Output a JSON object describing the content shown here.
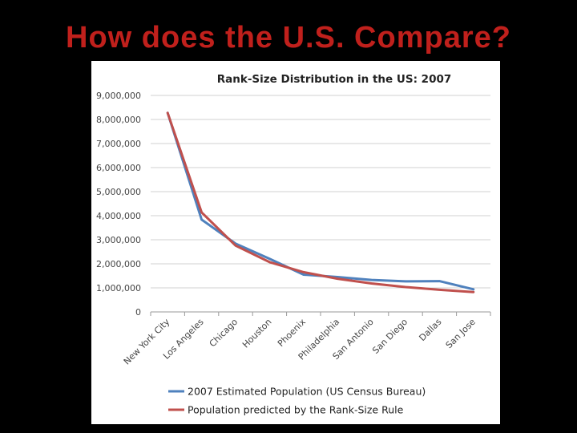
{
  "slide": {
    "title": "How does the U.S. Compare?"
  },
  "chart_data": {
    "type": "line",
    "title": "Rank-Size Distribution in the US: 2007",
    "categories": [
      "New York City",
      "Los Angeles",
      "Chicago",
      "Houston",
      "Phoenix",
      "Philadelphia",
      "San Antonio",
      "San Diego",
      "Dallas",
      "San Jose"
    ],
    "yticks": [
      "0",
      "1,000,000",
      "2,000,000",
      "3,000,000",
      "4,000,000",
      "5,000,000",
      "6,000,000",
      "7,000,000",
      "8,000,000",
      "9,000,000"
    ],
    "ylim": [
      0,
      9000000
    ],
    "grid": true,
    "legend_position": "bottom",
    "series": [
      {
        "name": "2007 Estimated Population (US Census Bureau)",
        "color": "#4f81bd",
        "values": [
          8275000,
          3835000,
          2835000,
          2210000,
          1550000,
          1450000,
          1330000,
          1270000,
          1280000,
          940000
        ]
      },
      {
        "name": "Population predicted by the Rank-Size Rule",
        "color": "#c0504d",
        "values": [
          8275000,
          4137500,
          2758333,
          2068750,
          1655000,
          1379167,
          1182143,
          1034375,
          919444,
          827500
        ]
      }
    ]
  }
}
